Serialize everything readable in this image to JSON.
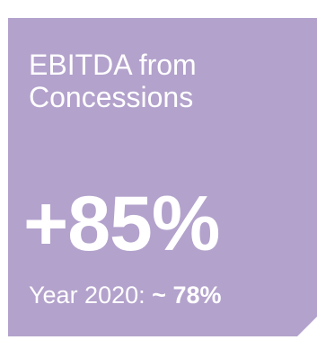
{
  "card": {
    "title_line1": "EBITDA from",
    "title_line2": "Concessions",
    "headline": "+85%",
    "sub_label": "Year 2020:",
    "sub_approx": "~",
    "sub_value": "78%",
    "background_color": "#b3a2cc",
    "text_color": "#ffffff"
  }
}
